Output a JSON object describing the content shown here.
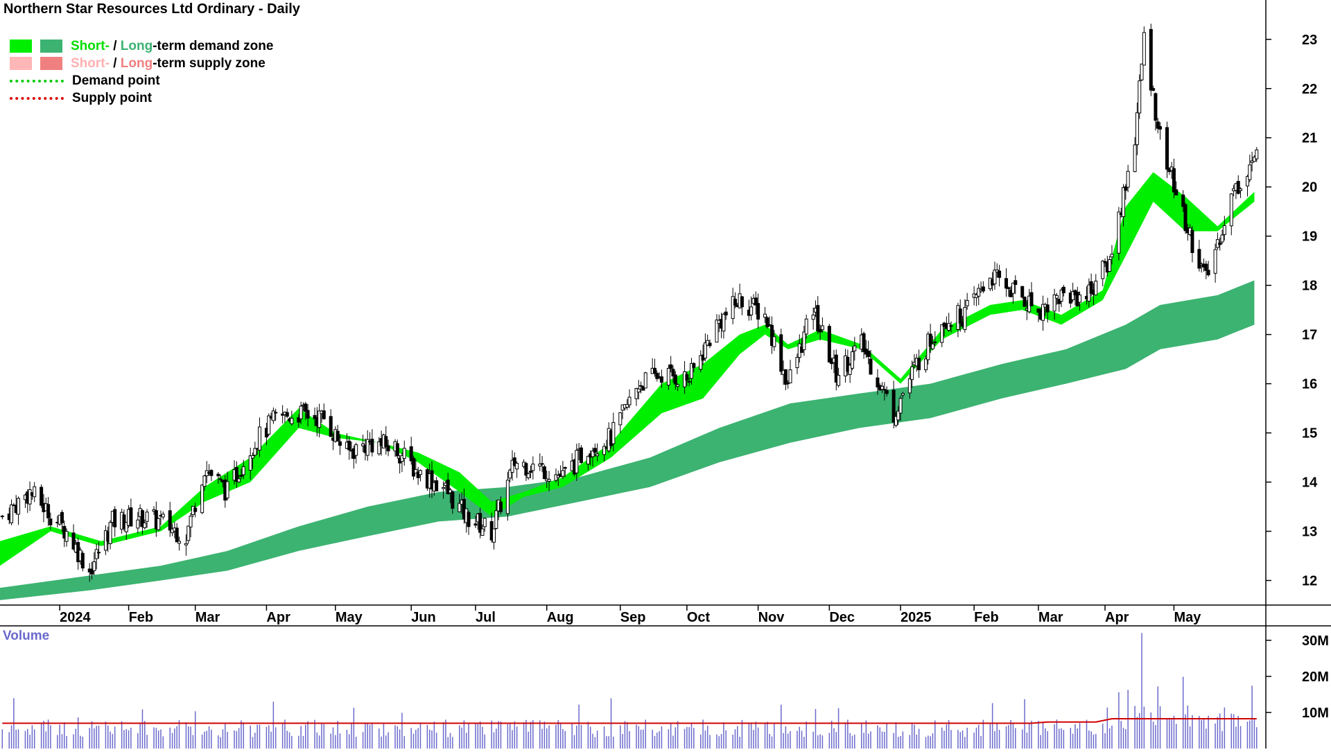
{
  "title": "Northern Star Resources Ltd Ordinary - Daily",
  "legend": {
    "demand_zone": {
      "short": "Short-",
      "sep": " / ",
      "long": "Long",
      "rest": "-term demand zone"
    },
    "supply_zone": {
      "short": "Short-",
      "sep": " / ",
      "long": "Long",
      "rest": "-term supply zone"
    },
    "demand_point": "Demand point",
    "supply_point": "Supply point"
  },
  "colors": {
    "short_demand": "#00ee00",
    "long_demand": "#3cb371",
    "short_supply": "#ffb6b6",
    "long_supply": "#f08080",
    "mixed_zone": "#ff6a30",
    "demand_point": "#00cc00",
    "supply_point": "#dd0000",
    "volume_bar": "#6a6acd",
    "volume_avg": "#d10000"
  },
  "volume": {
    "label": "Volume"
  },
  "chart_data": {
    "type": "candlestick",
    "title": "Northern Star Resources Ltd Ordinary - Daily",
    "x_range": [
      "2023-12-07",
      "2025-06-10"
    ],
    "price_ylim": [
      11.5,
      23.8
    ],
    "price_ticks": [
      12,
      13,
      14,
      15,
      16,
      17,
      18,
      19,
      20,
      21,
      22,
      23
    ],
    "volume_ylim": [
      0,
      34000000
    ],
    "volume_ticks": [
      {
        "value": 10000000,
        "label": "10M"
      },
      {
        "value": 20000000,
        "label": "20M"
      },
      {
        "value": 30000000,
        "label": "30M"
      }
    ],
    "x_ticks": [
      {
        "date": "2024-01-02",
        "label": "2024"
      },
      {
        "date": "2024-02-01",
        "label": "Feb"
      },
      {
        "date": "2024-03-01",
        "label": "Mar"
      },
      {
        "date": "2024-04-01",
        "label": "Apr"
      },
      {
        "date": "2024-05-01",
        "label": "May"
      },
      {
        "date": "2024-06-03",
        "label": "Jun"
      },
      {
        "date": "2024-07-01",
        "label": "Jul"
      },
      {
        "date": "2024-08-01",
        "label": "Aug"
      },
      {
        "date": "2024-09-02",
        "label": "Sep"
      },
      {
        "date": "2024-10-01",
        "label": "Oct"
      },
      {
        "date": "2024-11-01",
        "label": "Nov"
      },
      {
        "date": "2024-12-02",
        "label": "Dec"
      },
      {
        "date": "2025-01-02",
        "label": "2025"
      },
      {
        "date": "2025-02-03",
        "label": "Feb"
      },
      {
        "date": "2025-03-03",
        "label": "Mar"
      },
      {
        "date": "2025-04-01",
        "label": "Apr"
      },
      {
        "date": "2025-05-01",
        "label": "May"
      }
    ],
    "close": [
      [
        "2023-12-08",
        13.3
      ],
      [
        "2023-12-20",
        13.8
      ],
      [
        "2024-01-05",
        13.0
      ],
      [
        "2024-01-15",
        12.2
      ],
      [
        "2024-01-25",
        13.2
      ],
      [
        "2024-02-05",
        13.3
      ],
      [
        "2024-02-15",
        13.2
      ],
      [
        "2024-02-26",
        12.9
      ],
      [
        "2024-03-05",
        14.3
      ],
      [
        "2024-03-15",
        13.8
      ],
      [
        "2024-03-25",
        14.7
      ],
      [
        "2024-04-05",
        15.3
      ],
      [
        "2024-04-15",
        15.4
      ],
      [
        "2024-04-26",
        15.3
      ],
      [
        "2024-05-06",
        14.6
      ],
      [
        "2024-05-16",
        14.8
      ],
      [
        "2024-05-27",
        14.7
      ],
      [
        "2024-06-06",
        14.2
      ],
      [
        "2024-06-17",
        13.9
      ],
      [
        "2024-06-27",
        13.3
      ],
      [
        "2024-07-08",
        13.0
      ],
      [
        "2024-07-18",
        14.4
      ],
      [
        "2024-07-29",
        14.3
      ],
      [
        "2024-08-08",
        14.1
      ],
      [
        "2024-08-19",
        14.7
      ],
      [
        "2024-08-29",
        14.9
      ],
      [
        "2024-09-10",
        16.0
      ],
      [
        "2024-09-20",
        16.2
      ],
      [
        "2024-10-02",
        16.1
      ],
      [
        "2024-10-14",
        17.2
      ],
      [
        "2024-10-24",
        17.7
      ],
      [
        "2024-11-04",
        17.4
      ],
      [
        "2024-11-14",
        16.0
      ],
      [
        "2024-11-25",
        17.5
      ],
      [
        "2024-12-05",
        16.2
      ],
      [
        "2024-12-16",
        16.8
      ],
      [
        "2024-12-30",
        15.4
      ],
      [
        "2025-01-09",
        16.4
      ],
      [
        "2025-01-20",
        17.3
      ],
      [
        "2025-01-30",
        17.4
      ],
      [
        "2025-02-10",
        18.2
      ],
      [
        "2025-02-20",
        17.9
      ],
      [
        "2025-03-03",
        17.5
      ],
      [
        "2025-03-13",
        17.8
      ],
      [
        "2025-03-24",
        17.8
      ],
      [
        "2025-04-03",
        18.5
      ],
      [
        "2025-04-14",
        21.0
      ],
      [
        "2025-04-18",
        23.0
      ],
      [
        "2025-04-25",
        21.0
      ],
      [
        "2025-05-05",
        19.4
      ],
      [
        "2025-05-15",
        18.1
      ],
      [
        "2025-05-26",
        19.8
      ],
      [
        "2025-06-05",
        20.6
      ]
    ],
    "short_term_zone": [
      [
        "2023-12-07",
        12.3,
        12.8
      ],
      [
        "2023-12-29",
        13.0,
        13.1
      ],
      [
        "2024-01-20",
        12.7,
        12.8
      ],
      [
        "2024-02-15",
        13.0,
        13.1
      ],
      [
        "2024-03-05",
        13.6,
        13.9
      ],
      [
        "2024-03-25",
        14.0,
        14.5
      ],
      [
        "2024-04-15",
        15.1,
        15.5
      ],
      [
        "2024-05-01",
        14.9,
        15.0
      ],
      [
        "2024-05-20",
        14.8,
        14.8
      ],
      [
        "2024-06-06",
        14.4,
        14.6
      ],
      [
        "2024-06-24",
        13.8,
        14.2
      ],
      [
        "2024-07-08",
        13.3,
        13.6
      ],
      [
        "2024-07-22",
        13.7,
        13.8
      ],
      [
        "2024-08-08",
        13.9,
        14.1
      ],
      [
        "2024-08-29",
        14.5,
        14.8
      ],
      [
        "2024-09-20",
        15.4,
        16.0
      ],
      [
        "2024-10-08",
        15.7,
        16.4
      ],
      [
        "2024-10-24",
        16.6,
        17.0
      ],
      [
        "2024-11-04",
        17.0,
        17.2
      ],
      [
        "2024-11-14",
        16.7,
        16.8
      ],
      [
        "2024-11-28",
        16.9,
        17.1
      ],
      [
        "2024-12-16",
        16.7,
        16.8
      ],
      [
        "2025-01-02",
        16.0,
        16.1
      ],
      [
        "2025-01-20",
        16.9,
        17.1
      ],
      [
        "2025-02-10",
        17.4,
        17.6
      ],
      [
        "2025-02-24",
        17.5,
        17.7
      ],
      [
        "2025-03-13",
        17.2,
        17.4
      ],
      [
        "2025-03-31",
        17.7,
        17.9
      ],
      [
        "2025-04-10",
        18.6,
        19.6
      ],
      [
        "2025-04-22",
        19.7,
        20.3
      ],
      [
        "2025-05-06",
        19.1,
        19.8
      ],
      [
        "2025-05-20",
        19.1,
        19.2
      ],
      [
        "2025-06-05",
        19.7,
        19.9
      ]
    ],
    "long_term_zone": [
      [
        "2023-12-07",
        11.6,
        11.85
      ],
      [
        "2024-01-15",
        11.8,
        12.1
      ],
      [
        "2024-02-15",
        12.0,
        12.3
      ],
      [
        "2024-03-15",
        12.2,
        12.6
      ],
      [
        "2024-04-15",
        12.6,
        13.1
      ],
      [
        "2024-05-15",
        12.9,
        13.5
      ],
      [
        "2024-06-15",
        13.2,
        13.8
      ],
      [
        "2024-07-15",
        13.3,
        13.9
      ],
      [
        "2024-08-15",
        13.6,
        14.1
      ],
      [
        "2024-09-15",
        13.9,
        14.5
      ],
      [
        "2024-10-15",
        14.4,
        15.1
      ],
      [
        "2024-11-15",
        14.8,
        15.6
      ],
      [
        "2024-12-15",
        15.1,
        15.8
      ],
      [
        "2025-01-15",
        15.3,
        16.0
      ],
      [
        "2025-02-15",
        15.7,
        16.4
      ],
      [
        "2025-03-15",
        16.0,
        16.7
      ],
      [
        "2025-04-10",
        16.3,
        17.2
      ],
      [
        "2025-04-25",
        16.7,
        17.6
      ],
      [
        "2025-05-20",
        16.9,
        17.8
      ],
      [
        "2025-06-05",
        17.2,
        18.1
      ]
    ],
    "volume_avg": 7000000
  }
}
